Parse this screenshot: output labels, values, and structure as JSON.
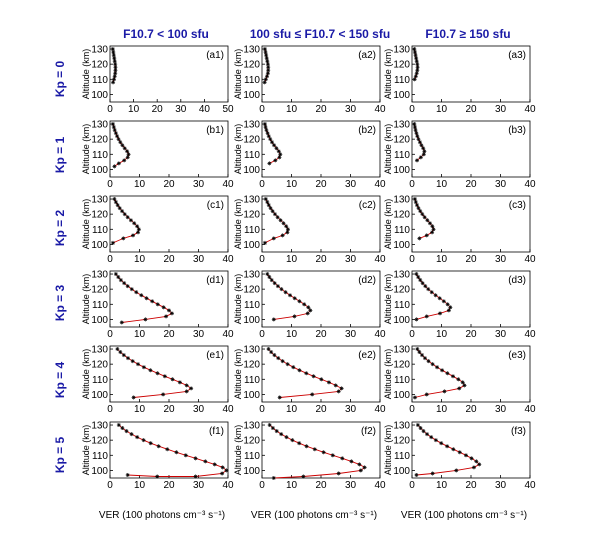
{
  "column_headers": [
    "F10.7 < 100 sfu",
    "100 sfu ≤ F10.7 < 150 sfu",
    "F10.7 ≥ 150 sfu"
  ],
  "row_headers": [
    "Kp = 0",
    "Kp = 1",
    "Kp = 2",
    "Kp = 3",
    "Kp = 4",
    "Kp = 5"
  ],
  "ylabel": "Altitude (km)",
  "xlabel": "VER (100 photons cm⁻³ s⁻¹)",
  "colors": {
    "headers": "#1a1aa6",
    "line": "#cc0000",
    "marker": "#000000"
  },
  "chart_data": {
    "type": "line",
    "grid": false,
    "ylim": [
      95,
      132
    ],
    "yticks": [
      100,
      110,
      120,
      130
    ],
    "panels": [
      {
        "label": "(a1)",
        "xlim": [
          0,
          50
        ],
        "xticks": [
          0,
          10,
          20,
          30,
          40,
          50
        ],
        "series": [
          {
            "x": [
              1.2,
              1.4,
              1.6,
              1.8,
              2.0,
              2.2,
              2.3,
              2.3,
              2.2,
              2.0,
              1.7,
              1.3
            ],
            "y": [
              130,
              128,
              126,
              124,
              122,
              120,
              118,
              116,
              114,
              112,
              110,
              108
            ]
          }
        ]
      },
      {
        "label": "(a2)",
        "xlim": [
          0,
          40
        ],
        "xticks": [
          0,
          10,
          20,
          30,
          40
        ],
        "series": [
          {
            "x": [
              1.0,
              1.2,
              1.4,
              1.6,
              1.8,
              2.0,
              2.1,
              2.1,
              2.0,
              1.7,
              1.3,
              0.9
            ],
            "y": [
              130,
              128,
              126,
              124,
              122,
              120,
              118,
              116,
              114,
              112,
              110,
              108
            ]
          }
        ]
      },
      {
        "label": "(a3)",
        "xlim": [
          0,
          40
        ],
        "xticks": [
          0,
          10,
          20,
          30,
          40
        ],
        "series": [
          {
            "x": [
              0.8,
              1.0,
              1.2,
              1.4,
              1.6,
              1.8,
              1.9,
              1.8,
              1.6,
              1.3,
              0.9
            ],
            "y": [
              130,
              128,
              126,
              124,
              122,
              120,
              118,
              116,
              114,
              112,
              110
            ]
          }
        ]
      },
      {
        "label": "(b1)",
        "xlim": [
          0,
          40
        ],
        "xticks": [
          0,
          10,
          20,
          30,
          40
        ],
        "series": [
          {
            "x": [
              1.0,
              1.3,
              1.6,
              2.0,
              2.4,
              2.9,
              3.5,
              4.2,
              5.0,
              5.8,
              6.3,
              6.0,
              4.8,
              3.0,
              1.5
            ],
            "y": [
              130,
              128,
              126,
              124,
              122,
              120,
              118,
              116,
              114,
              112,
              110,
              108,
              106,
              104,
              102
            ]
          }
        ]
      },
      {
        "label": "(b2)",
        "xlim": [
          0,
          40
        ],
        "xticks": [
          0,
          10,
          20,
          30,
          40
        ],
        "series": [
          {
            "x": [
              1.0,
              1.2,
              1.5,
              1.9,
              2.3,
              2.8,
              3.4,
              4.1,
              4.9,
              5.7,
              6.2,
              5.9,
              4.5,
              2.5
            ],
            "y": [
              130,
              128,
              126,
              124,
              122,
              120,
              118,
              116,
              114,
              112,
              110,
              108,
              106,
              104
            ]
          }
        ]
      },
      {
        "label": "(b3)",
        "xlim": [
          0,
          40
        ],
        "xticks": [
          0,
          10,
          20,
          30,
          40
        ],
        "series": [
          {
            "x": [
              0.8,
              1.0,
              1.2,
              1.5,
              1.8,
              2.2,
              2.7,
              3.2,
              3.8,
              4.2,
              4.0,
              3.0,
              1.7
            ],
            "y": [
              130,
              128,
              126,
              124,
              122,
              120,
              118,
              116,
              114,
              112,
              110,
              108,
              106
            ]
          }
        ]
      },
      {
        "label": "(c1)",
        "xlim": [
          0,
          40
        ],
        "xticks": [
          0,
          10,
          20,
          30,
          40
        ],
        "series": [
          {
            "x": [
              1.5,
              2.0,
              2.6,
              3.3,
              4.1,
              5.0,
              6.0,
              7.1,
              8.2,
              9.2,
              9.8,
              9.5,
              7.8,
              4.5,
              1.0
            ],
            "y": [
              130,
              128,
              126,
              124,
              122,
              120,
              118,
              116,
              114,
              112,
              110,
              108,
              106,
              104,
              101
            ]
          }
        ]
      },
      {
        "label": "(c2)",
        "xlim": [
          0,
          40
        ],
        "xticks": [
          0,
          10,
          20,
          30,
          40
        ],
        "series": [
          {
            "x": [
              1.3,
              1.8,
              2.3,
              2.9,
              3.6,
              4.4,
              5.3,
              6.3,
              7.3,
              8.2,
              8.8,
              8.6,
              7.0,
              4.0,
              1.0
            ],
            "y": [
              130,
              128,
              126,
              124,
              122,
              120,
              118,
              116,
              114,
              112,
              110,
              108,
              106,
              104,
              101
            ]
          }
        ]
      },
      {
        "label": "(c3)",
        "xlim": [
          0,
          40
        ],
        "xticks": [
          0,
          10,
          20,
          30,
          40
        ],
        "series": [
          {
            "x": [
              1.0,
              1.3,
              1.7,
              2.2,
              2.8,
              3.5,
              4.3,
              5.2,
              6.1,
              6.9,
              7.3,
              6.8,
              5.0,
              2.5
            ],
            "y": [
              130,
              128,
              126,
              124,
              122,
              120,
              118,
              116,
              114,
              112,
              110,
              108,
              106,
              104
            ]
          }
        ]
      },
      {
        "label": "(d1)",
        "xlim": [
          0,
          40
        ],
        "xticks": [
          0,
          10,
          20,
          30,
          40
        ],
        "series": [
          {
            "x": [
              2.0,
              2.8,
              3.7,
              4.8,
              6.0,
              7.4,
              8.9,
              10.6,
              12.4,
              14.3,
              16.2,
              18.2,
              20.0,
              21.0,
              19.0,
              12.0,
              4.0
            ],
            "y": [
              130,
              128,
              126,
              124,
              122,
              120,
              118,
              116,
              114,
              112,
              110,
              108,
              106,
              104,
              102,
              100,
              98
            ]
          }
        ]
      },
      {
        "label": "(d2)",
        "xlim": [
          0,
          40
        ],
        "xticks": [
          0,
          10,
          20,
          30,
          40
        ],
        "series": [
          {
            "x": [
              1.8,
              2.5,
              3.3,
              4.3,
              5.4,
              6.6,
              8.0,
              9.5,
              11.1,
              12.7,
              14.3,
              15.7,
              16.4,
              15.5,
              11.0,
              4.0
            ],
            "y": [
              130,
              128,
              126,
              124,
              122,
              120,
              118,
              116,
              114,
              112,
              110,
              108,
              106,
              104,
              102,
              100
            ]
          }
        ]
      },
      {
        "label": "(d3)",
        "xlim": [
          0,
          40
        ],
        "xticks": [
          0,
          10,
          20,
          30,
          40
        ],
        "series": [
          {
            "x": [
              1.5,
              2.1,
              2.8,
              3.6,
              4.5,
              5.5,
              6.7,
              8.0,
              9.4,
              10.8,
              12.1,
              13.0,
              12.5,
              9.5,
              5.0,
              1.5
            ],
            "y": [
              130,
              128,
              126,
              124,
              122,
              120,
              118,
              116,
              114,
              112,
              110,
              108,
              106,
              104,
              102,
              100
            ]
          }
        ]
      },
      {
        "label": "(e1)",
        "xlim": [
          0,
          40
        ],
        "xticks": [
          0,
          10,
          20,
          30,
          40
        ],
        "series": [
          {
            "x": [
              2.5,
              3.5,
              4.7,
              6.1,
              7.7,
              9.5,
              11.5,
              13.7,
              16.1,
              18.6,
              21.2,
              23.7,
              26.0,
              27.5,
              26.0,
              18.0,
              8.0
            ],
            "y": [
              130,
              128,
              126,
              124,
              122,
              120,
              118,
              116,
              114,
              112,
              110,
              108,
              106,
              104,
              102,
              100,
              98
            ]
          }
        ]
      },
      {
        "label": "(e2)",
        "xlim": [
          0,
          40
        ],
        "xticks": [
          0,
          10,
          20,
          30,
          40
        ],
        "series": [
          {
            "x": [
              2.2,
              3.1,
              4.2,
              5.5,
              7.0,
              8.7,
              10.6,
              12.7,
              15.0,
              17.5,
              20.1,
              22.7,
              25.0,
              27.0,
              26.0,
              17.0,
              6.0
            ],
            "y": [
              130,
              128,
              126,
              124,
              122,
              120,
              118,
              116,
              114,
              112,
              110,
              108,
              106,
              104,
              102,
              100,
              98
            ]
          }
        ]
      },
      {
        "label": "(e3)",
        "xlim": [
          0,
          40
        ],
        "xticks": [
          0,
          10,
          20,
          30,
          40
        ],
        "series": [
          {
            "x": [
              1.8,
              2.5,
              3.4,
              4.4,
              5.6,
              7.0,
              8.5,
              10.2,
              12.0,
              13.9,
              15.7,
              17.2,
              17.8,
              16.0,
              11.0,
              5.0,
              1.0
            ],
            "y": [
              130,
              128,
              126,
              124,
              122,
              120,
              118,
              116,
              114,
              112,
              110,
              108,
              106,
              104,
              102,
              100,
              98
            ]
          }
        ]
      },
      {
        "label": "(f1)",
        "xlim": [
          0,
          40
        ],
        "xticks": [
          0,
          10,
          20,
          30,
          40
        ],
        "series": [
          {
            "x": [
              3.0,
              4.2,
              5.6,
              7.3,
              9.2,
              11.4,
              13.8,
              16.5,
              19.4,
              22.5,
              25.7,
              29.0,
              32.3,
              35.5,
              38.2,
              39.5,
              38.0,
              29.0,
              16.0,
              6.0
            ],
            "y": [
              130,
              128,
              126,
              124,
              122,
              120,
              118,
              116,
              114,
              112,
              110,
              108,
              106,
              104,
              102,
              100,
              98,
              96,
              96,
              97
            ]
          }
        ]
      },
      {
        "label": "(f2)",
        "xlim": [
          0,
          40
        ],
        "xticks": [
          0,
          10,
          20,
          30,
          40
        ],
        "series": [
          {
            "x": [
              2.6,
              3.7,
              5.0,
              6.5,
              8.3,
              10.3,
              12.6,
              15.1,
              17.9,
              20.9,
              24.0,
              27.2,
              30.3,
              33.0,
              34.8,
              33.5,
              26.0,
              14.0,
              4.0
            ],
            "y": [
              130,
              128,
              126,
              124,
              122,
              120,
              118,
              116,
              114,
              112,
              110,
              108,
              106,
              104,
              102,
              100,
              98,
              96,
              95
            ]
          }
        ]
      },
      {
        "label": "(f3)",
        "xlim": [
          0,
          40
        ],
        "xticks": [
          0,
          10,
          20,
          30,
          40
        ],
        "series": [
          {
            "x": [
              2.0,
              2.9,
              3.9,
              5.1,
              6.5,
              8.1,
              9.9,
              11.9,
              14.0,
              16.2,
              18.3,
              20.2,
              21.8,
              22.8,
              21.0,
              15.0,
              7.0,
              1.5
            ],
            "y": [
              130,
              128,
              126,
              124,
              122,
              120,
              118,
              116,
              114,
              112,
              110,
              108,
              106,
              104,
              102,
              100,
              98,
              97
            ]
          }
        ]
      }
    ]
  }
}
